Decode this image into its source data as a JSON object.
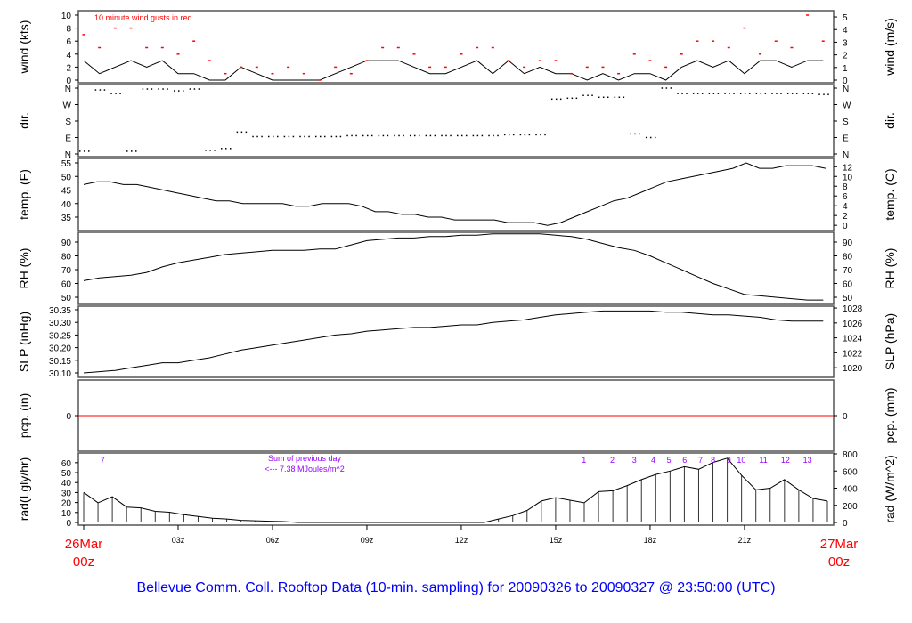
{
  "title": "Bellevue Comm. Coll. Rooftop Data (10-min. sampling) for 20090326  to  20090327 @ 23:50:00  (UTC)",
  "colors": {
    "gust": "#ff0000",
    "pcp": "#ff0000",
    "date": "#ff0000",
    "title": "#0000ff",
    "hour_labels": "#9900ff",
    "line": "#000000"
  },
  "chart_data": {
    "type": "line",
    "x_unit": "hours UTC since 26Mar 00z",
    "xlim": [
      -0.17,
      23.83
    ],
    "x_ticks": [
      {
        "h": 3,
        "label": "03z"
      },
      {
        "h": 6,
        "label": "06z"
      },
      {
        "h": 9,
        "label": "09z"
      },
      {
        "h": 12,
        "label": "12z"
      },
      {
        "h": 15,
        "label": "15z"
      },
      {
        "h": 18,
        "label": "18z"
      },
      {
        "h": 21,
        "label": "21z"
      }
    ],
    "date_start": [
      "26Mar",
      "00z"
    ],
    "date_end": [
      "27Mar",
      "00z"
    ],
    "x_step_hours": 0.5,
    "panels": {
      "wind": {
        "ylabel": "wind (kts)",
        "ylabel_right": "wind (m/s)",
        "ylim": [
          0,
          10
        ],
        "ticks": [
          "0",
          "2",
          "4",
          "6",
          "8",
          "10"
        ],
        "ticks_right": [
          "0",
          "1",
          "2",
          "3",
          "4",
          "5"
        ],
        "annotation": "10  minute wind gusts in red",
        "speed": [
          3,
          1,
          2,
          3,
          2,
          3,
          1,
          1,
          0,
          0,
          2,
          1,
          0,
          0,
          0,
          0,
          1,
          2,
          3,
          3,
          3,
          2,
          1,
          1,
          2,
          3,
          1,
          3,
          1,
          2,
          1,
          1,
          0,
          1,
          0,
          1,
          1,
          0,
          2,
          3,
          2,
          3,
          1,
          3,
          3,
          2,
          3,
          3,
          2
        ],
        "gust": [
          7,
          5,
          8,
          8,
          5,
          5,
          4,
          6,
          3,
          1,
          2,
          2,
          1,
          2,
          1,
          0,
          2,
          1,
          3,
          5,
          5,
          4,
          2,
          2,
          4,
          5,
          5,
          3,
          2,
          3,
          3,
          1,
          2,
          2,
          1,
          4,
          3,
          2,
          4,
          6,
          6,
          5,
          8,
          4,
          6,
          5,
          10,
          6,
          5
        ]
      },
      "dir": {
        "ylabel": "dir.",
        "ylabel_right": "dir.",
        "ylim": [
          0,
          360
        ],
        "ticks": [
          "N",
          "E",
          "S",
          "W",
          "N"
        ],
        "values": [
          15,
          350,
          330,
          15,
          355,
          355,
          345,
          355,
          20,
          30,
          120,
          95,
          95,
          95,
          95,
          95,
          95,
          100,
          100,
          100,
          100,
          100,
          100,
          100,
          100,
          100,
          100,
          105,
          105,
          105,
          300,
          305,
          320,
          310,
          310,
          110,
          90,
          360,
          330,
          330,
          330,
          330,
          330,
          330,
          330,
          330,
          330,
          325,
          330
        ]
      },
      "temp": {
        "ylabel": "temp. (F)",
        "ylabel_right": "temp. (C)",
        "ticks": [
          "35",
          "40",
          "45",
          "50",
          "55"
        ],
        "ticks_right": [
          "0",
          "2",
          "4",
          "6",
          "8",
          "10",
          "12"
        ],
        "values": [
          47,
          48,
          48,
          47,
          47,
          46,
          45,
          44,
          43,
          42,
          41,
          41,
          40,
          40,
          40,
          40,
          39,
          39,
          40,
          40,
          40,
          39,
          37,
          37,
          36,
          36,
          35,
          35,
          34,
          34,
          34,
          34,
          33,
          33,
          33,
          32,
          33,
          35,
          37,
          39,
          41,
          42,
          44,
          46,
          48,
          49,
          50,
          51,
          52,
          53,
          55,
          53,
          53,
          54,
          54,
          54,
          53,
          53
        ]
      },
      "rh": {
        "ylabel": "RH (%)",
        "ylabel_right": "RH (%)",
        "ticks": [
          "50",
          "60",
          "70",
          "80",
          "90"
        ],
        "values": [
          62,
          64,
          65,
          66,
          68,
          72,
          75,
          77,
          79,
          81,
          82,
          83,
          84,
          84,
          84,
          85,
          85,
          88,
          91,
          92,
          93,
          93,
          94,
          94,
          95,
          95,
          96,
          96,
          96,
          96,
          95,
          94,
          92,
          89,
          86,
          84,
          80,
          75,
          70,
          65,
          60,
          56,
          52,
          51,
          50,
          49,
          48,
          48,
          48
        ]
      },
      "slp": {
        "ylabel": "SLP (inHg)",
        "ylabel_right": "SLP (hPa)",
        "ticks": [
          "30.10",
          "30.15",
          "30.20",
          "30.25",
          "30.30",
          "30.35"
        ],
        "ticks_right": [
          "1020",
          "1022",
          "1024",
          "1026",
          "1028"
        ],
        "values": [
          30.1,
          30.105,
          30.11,
          30.12,
          30.13,
          30.14,
          30.14,
          30.15,
          30.16,
          30.175,
          30.19,
          30.2,
          30.21,
          30.22,
          30.23,
          30.24,
          30.25,
          30.255,
          30.265,
          30.27,
          30.275,
          30.28,
          30.28,
          30.285,
          30.29,
          30.29,
          30.3,
          30.305,
          30.31,
          30.32,
          30.33,
          30.335,
          30.34,
          30.345,
          30.345,
          30.345,
          30.345,
          30.34,
          30.34,
          30.335,
          30.33,
          30.33,
          30.325,
          30.32,
          30.31,
          30.305,
          30.305,
          30.305,
          30.31
        ]
      },
      "pcp": {
        "ylabel": "pcp. (in)",
        "ylabel_right": "pcp. (mm)",
        "ticks": [
          "0"
        ],
        "ticks_right": [
          "0"
        ],
        "values_in": 0
      },
      "rad": {
        "ylabel": "rad(Lgly/hr)",
        "ylabel_right": "rad (W/m^2)",
        "ticks": [
          "0",
          "10",
          "20",
          "30",
          "40",
          "50",
          "60"
        ],
        "ticks_right": [
          "0",
          "200",
          "400",
          "600",
          "800"
        ],
        "values_wm2": [
          350,
          230,
          300,
          180,
          170,
          130,
          120,
          90,
          70,
          50,
          40,
          25,
          20,
          15,
          10,
          0,
          0,
          0,
          0,
          0,
          0,
          0,
          0,
          0,
          0,
          0,
          0,
          0,
          0,
          40,
          80,
          140,
          250,
          290,
          260,
          230,
          360,
          370,
          430,
          500,
          560,
          600,
          650,
          620,
          700,
          750,
          550,
          380,
          400,
          500,
          380,
          280,
          250
        ],
        "values_step_hours": 0.4545,
        "sum_note": [
          "Sum of previous day",
          "<--- 7.38 MJoules/m^2"
        ],
        "hour_marks": [
          {
            "h": 0.6,
            "label": "7"
          },
          {
            "h": 15.9,
            "label": "1"
          },
          {
            "h": 16.8,
            "label": "2"
          },
          {
            "h": 17.5,
            "label": "3"
          },
          {
            "h": 18.1,
            "label": "4"
          },
          {
            "h": 18.6,
            "label": "5"
          },
          {
            "h": 19.1,
            "label": "6"
          },
          {
            "h": 19.6,
            "label": "7"
          },
          {
            "h": 20.0,
            "label": "8"
          },
          {
            "h": 20.5,
            "label": "9"
          },
          {
            "h": 20.9,
            "label": "10"
          },
          {
            "h": 21.6,
            "label": "11"
          },
          {
            "h": 22.3,
            "label": "12"
          },
          {
            "h": 23.0,
            "label": "13"
          }
        ]
      }
    }
  }
}
